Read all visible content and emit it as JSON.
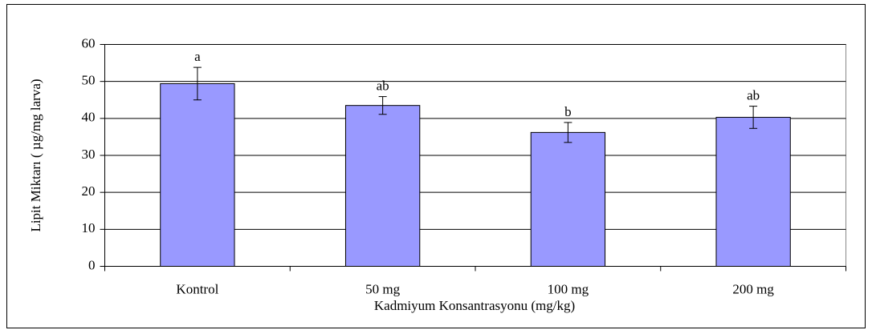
{
  "chart_data": {
    "type": "bar",
    "xlabel": "Kadmiyum Konsantrasyonu (mg/kg)",
    "ylabel": "Lipit Miktarı ( µg/mg larva)",
    "categories": [
      "Kontrol",
      "50 mg",
      "100 mg",
      "200 mg"
    ],
    "values": [
      49.4,
      43.5,
      36.2,
      40.3
    ],
    "errors": [
      4.4,
      2.4,
      2.7,
      3.0
    ],
    "annotations": [
      "a",
      "ab",
      "b",
      "ab"
    ],
    "color": "#9999ff",
    "ylim": [
      0,
      60
    ],
    "yticks": [
      0,
      10,
      20,
      30,
      40,
      50,
      60
    ],
    "grid": true
  }
}
